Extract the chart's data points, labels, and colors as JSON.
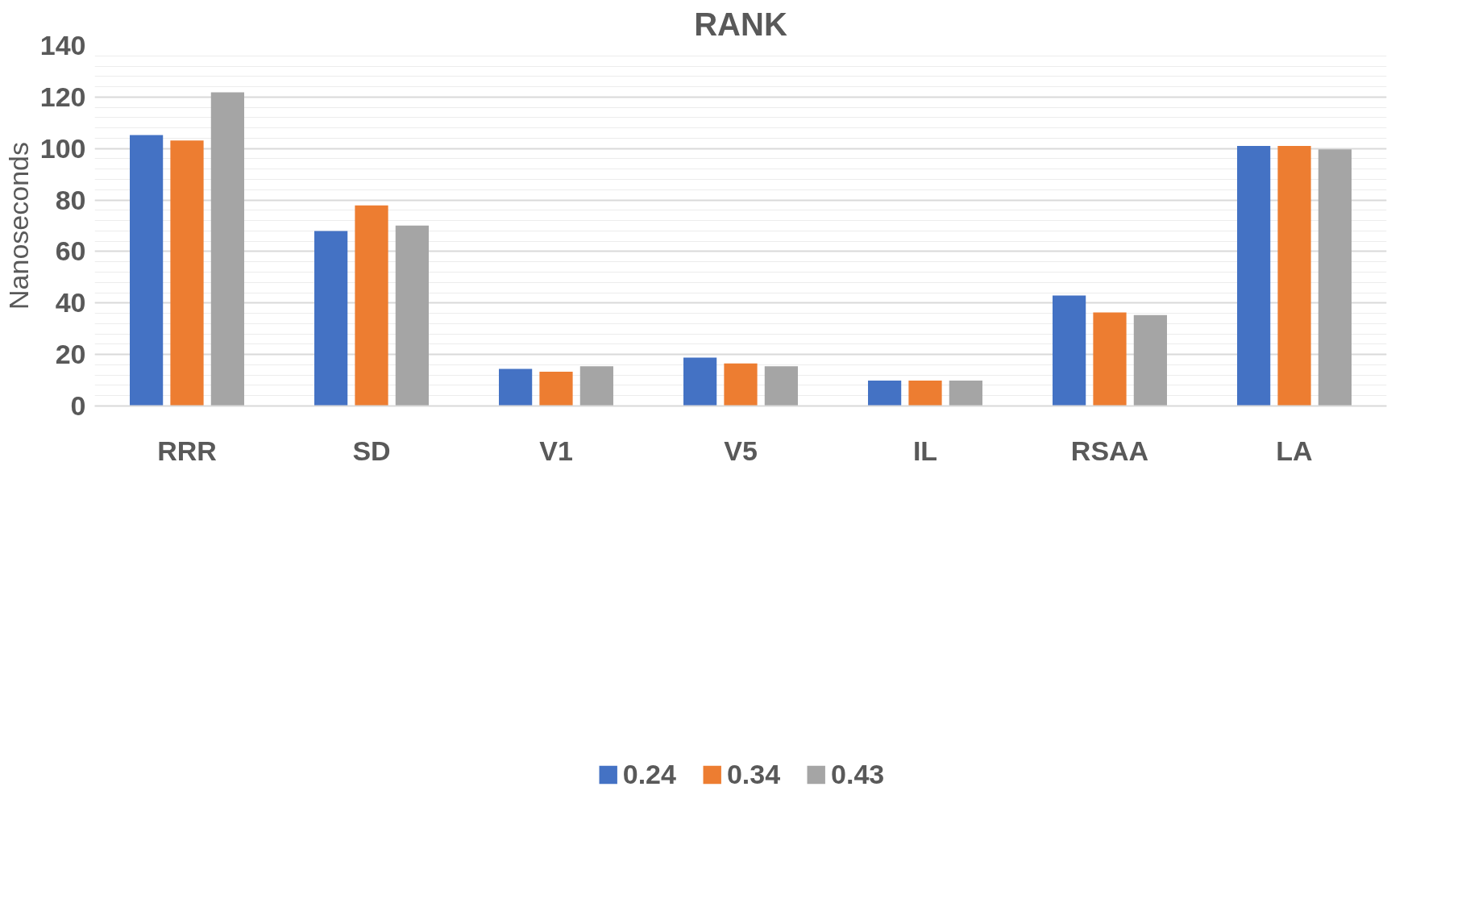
{
  "chart_data": {
    "type": "bar",
    "title": "RANK",
    "ylabel": "Nanoseconds",
    "categories": [
      "RRR",
      "SD",
      "V1",
      "V5",
      "IL",
      "RSAA",
      "LA"
    ],
    "series": [
      {
        "name": "0.24",
        "color": "#4472c4",
        "values": [
          105.2,
          68,
          14.4,
          18.8,
          9.9,
          42.9,
          101
        ]
      },
      {
        "name": "0.34",
        "color": "#ed7d31",
        "values": [
          103.1,
          77.9,
          13.3,
          16.5,
          9.9,
          36.3,
          101
        ]
      },
      {
        "name": "0.43",
        "color": "#a5a5a5",
        "values": [
          121.8,
          70.1,
          15.4,
          15.4,
          9.9,
          35.3,
          99.7
        ]
      }
    ],
    "ylim": [
      0,
      140
    ],
    "yticks": [
      0,
      20,
      40,
      60,
      80,
      100,
      120,
      140
    ],
    "grid": "y",
    "legend": "bottom"
  }
}
